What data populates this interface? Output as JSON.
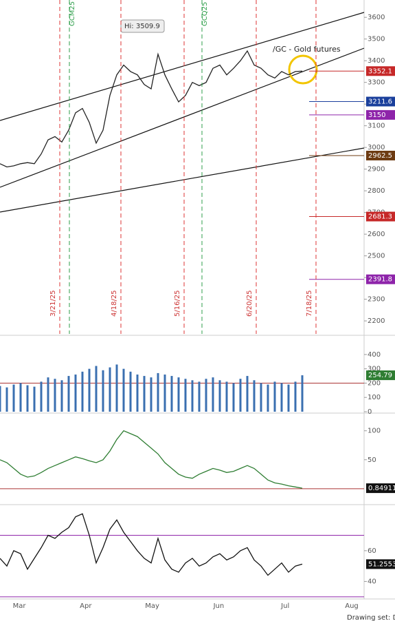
{
  "chart_data": [
    {
      "type": "line",
      "title": "/GC - Gold futures",
      "annotation": "Hi: 3509.9",
      "color": "#222",
      "values": [
        2925,
        2910,
        2915,
        2925,
        2930,
        2925,
        2970,
        3035,
        3050,
        3025,
        3080,
        3160,
        3180,
        3115,
        3020,
        3080,
        3240,
        3335,
        3380,
        3350,
        3335,
        3290,
        3270,
        3430,
        3335,
        3270,
        3210,
        3240,
        3300,
        3285,
        3300,
        3365,
        3380,
        3335,
        3365,
        3400,
        3445,
        3380,
        3365,
        3335,
        3320,
        3350,
        3335,
        3350,
        3352.1
      ],
      "ylim": [
        2140,
        3680
      ],
      "yticks": [
        2200,
        2300,
        2400,
        2500,
        2600,
        2700,
        2800,
        2900,
        3000,
        3100,
        3200,
        3300,
        3400,
        3500,
        3600
      ],
      "levels": [
        {
          "value": 3352.1,
          "color": "#c62828"
        },
        {
          "value": 3211.6,
          "color": "#1a3f9c"
        },
        {
          "value": 3150,
          "color": "#8e24aa"
        },
        {
          "value": 2962.5,
          "color": "#6d3b12"
        },
        {
          "value": 2681.3,
          "color": "#c62828"
        },
        {
          "value": 2391.8,
          "color": "#8e24aa"
        }
      ],
      "expiry_dates": [
        "3/21/25",
        "4/18/25",
        "5/16/25",
        "6/20/25",
        "7/18/25"
      ],
      "contracts": [
        "GCM25",
        "GCQ25"
      ],
      "months": [
        "Mar",
        "Apr",
        "May",
        "Jun",
        "Jul",
        "Aug"
      ]
    },
    {
      "type": "bar",
      "color": "#3a6fb0",
      "last_label": 254.79,
      "values": [
        180,
        170,
        190,
        200,
        185,
        175,
        210,
        240,
        230,
        220,
        250,
        260,
        280,
        300,
        320,
        290,
        310,
        330,
        300,
        280,
        260,
        250,
        240,
        270,
        260,
        250,
        240,
        230,
        220,
        210,
        230,
        240,
        220,
        210,
        200,
        230,
        250,
        220,
        200,
        190,
        210,
        200,
        190,
        210,
        254.79
      ],
      "ylim": [
        0,
        520
      ],
      "yticks": [
        0,
        100,
        200,
        300,
        400
      ]
    },
    {
      "type": "line",
      "color": "#2e7d32",
      "last_label": 0.84911,
      "values": [
        50,
        45,
        35,
        25,
        20,
        22,
        28,
        35,
        40,
        45,
        50,
        55,
        52,
        48,
        45,
        50,
        65,
        85,
        100,
        95,
        90,
        80,
        70,
        60,
        45,
        35,
        25,
        20,
        18,
        25,
        30,
        35,
        32,
        28,
        30,
        35,
        40,
        35,
        25,
        15,
        10,
        8,
        5,
        3,
        0.84911
      ],
      "ylim": [
        -24,
        127
      ],
      "yticks": [
        50,
        100
      ]
    },
    {
      "type": "line",
      "color": "#111",
      "last_label": 51.2553,
      "values": [
        55,
        50,
        60,
        58,
        48,
        55,
        62,
        70,
        68,
        72,
        75,
        82,
        84,
        70,
        52,
        62,
        74,
        80,
        72,
        66,
        60,
        55,
        52,
        68,
        54,
        48,
        46,
        52,
        55,
        50,
        52,
        56,
        58,
        54,
        56,
        60,
        62,
        54,
        50,
        44,
        48,
        52,
        46,
        50,
        51.2553
      ],
      "ylim": [
        28.6,
        88.6
      ],
      "yticks": [
        40,
        60
      ],
      "bands": [
        30,
        70
      ]
    }
  ]
}
